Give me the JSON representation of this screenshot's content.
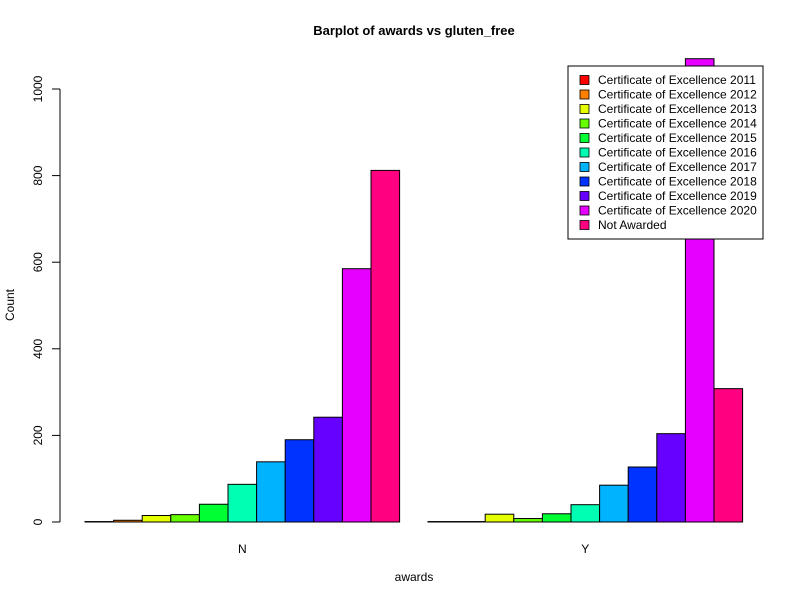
{
  "chart_data": {
    "type": "bar",
    "title": "Barplot of awards vs gluten_free",
    "xlabel": "awards",
    "ylabel": "Count",
    "categories": [
      "N",
      "Y"
    ],
    "yticks": [
      "0",
      "200",
      "400",
      "600",
      "800",
      "1000"
    ],
    "ylim": [
      0,
      1000
    ],
    "legend_position": "top-right",
    "series": [
      {
        "name": "Certificate of Excellence 2011",
        "color": "#FF0000",
        "values": [
          1,
          1
        ]
      },
      {
        "name": "Certificate of Excellence 2012",
        "color": "#FF7F00",
        "values": [
          4,
          1
        ]
      },
      {
        "name": "Certificate of Excellence 2013",
        "color": "#E6FF00",
        "values": [
          15,
          18
        ]
      },
      {
        "name": "Certificate of Excellence 2014",
        "color": "#66FF00",
        "values": [
          17,
          8
        ]
      },
      {
        "name": "Certificate of Excellence 2015",
        "color": "#00FF33",
        "values": [
          41,
          19
        ]
      },
      {
        "name": "Certificate of Excellence 2016",
        "color": "#00FFB2",
        "values": [
          87,
          40
        ]
      },
      {
        "name": "Certificate of Excellence 2017",
        "color": "#00B3FF",
        "values": [
          139,
          85
        ]
      },
      {
        "name": "Certificate of Excellence 2018",
        "color": "#0033FF",
        "values": [
          190,
          127
        ]
      },
      {
        "name": "Certificate of Excellence 2019",
        "color": "#6600FF",
        "values": [
          242,
          204
        ]
      },
      {
        "name": "Certificate of Excellence 2020",
        "color": "#E500FF",
        "values": [
          585,
          1070
        ]
      },
      {
        "name": "Not Awarded",
        "color": "#FF0080",
        "values": [
          812,
          308
        ]
      }
    ]
  }
}
